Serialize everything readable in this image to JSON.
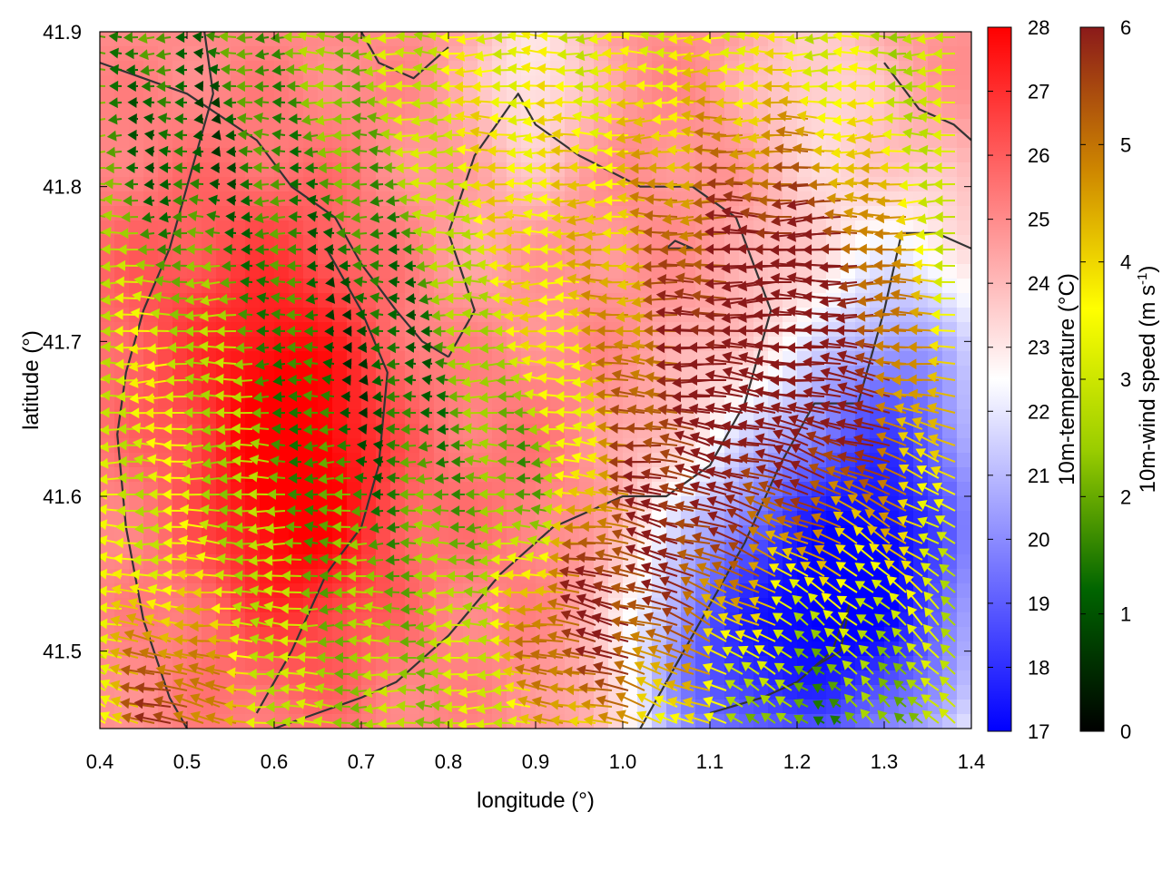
{
  "chart_data": {
    "type": "heatmap",
    "title": "",
    "xlabel": "longitude (°)",
    "ylabel": "latitude (°)",
    "xlim": [
      0.4,
      1.4
    ],
    "ylim": [
      41.45,
      41.9
    ],
    "xticks": [
      "0.4",
      "0.5",
      "0.6",
      "0.7",
      "0.8",
      "0.9",
      "1.0",
      "1.1",
      "1.2",
      "1.3",
      "1.4"
    ],
    "yticks": [
      "41.5",
      "41.6",
      "41.7",
      "41.8",
      "41.9"
    ],
    "grid": false,
    "temperature_colorbar": {
      "label": "10m-temperature (°C)",
      "range": [
        17,
        28
      ],
      "ticks": [
        "17",
        "18",
        "19",
        "20",
        "21",
        "22",
        "23",
        "24",
        "25",
        "26",
        "27",
        "28"
      ],
      "colors": [
        "#0000ff",
        "#ffffff",
        "#ff0000"
      ]
    },
    "windspeed_colorbar": {
      "label": "10m-wind speed (m s",
      "label_sup": "-1",
      "label_end": ")",
      "range": [
        0,
        6
      ],
      "ticks": [
        "0",
        "1",
        "2",
        "3",
        "4",
        "5",
        "6"
      ],
      "colors": [
        "#000000",
        "#006400",
        "#9acd00",
        "#ffff00",
        "#cd8500",
        "#8b1a1a"
      ]
    },
    "temperature_field": {
      "base": 25.0,
      "anomalies": [
        {
          "lon": 0.63,
          "lat": 41.6,
          "r": 0.08,
          "dT": 2.8
        },
        {
          "lon": 0.6,
          "lat": 41.7,
          "r": 0.08,
          "dT": 1.5
        },
        {
          "lon": 0.45,
          "lat": 41.72,
          "r": 0.07,
          "dT": 0.8
        },
        {
          "lon": 0.88,
          "lat": 41.62,
          "r": 0.07,
          "dT": 0.5
        },
        {
          "lon": 1.18,
          "lat": 41.52,
          "r": 0.1,
          "dT": -5.0
        },
        {
          "lon": 1.32,
          "lat": 41.55,
          "r": 0.1,
          "dT": -5.5
        },
        {
          "lon": 1.08,
          "lat": 41.48,
          "r": 0.07,
          "dT": -2.5
        },
        {
          "lon": 1.33,
          "lat": 41.7,
          "r": 0.08,
          "dT": -2.5
        },
        {
          "lon": 0.9,
          "lat": 41.88,
          "r": 0.05,
          "dT": -2.0
        },
        {
          "lon": 1.22,
          "lat": 41.87,
          "r": 0.06,
          "dT": -1.5
        },
        {
          "lon": 0.85,
          "lat": 41.77,
          "r": 0.07,
          "dT": -0.5
        }
      ]
    },
    "wind_field": {
      "speed_anomalies": [
        {
          "lon": 1.1,
          "lat": 41.57,
          "r": 0.1,
          "s": 5.8
        },
        {
          "lon": 1.24,
          "lat": 41.72,
          "r": 0.08,
          "s": 5.6
        },
        {
          "lon": 0.5,
          "lat": 41.46,
          "r": 0.06,
          "s": 5.5
        },
        {
          "lon": 0.95,
          "lat": 41.52,
          "r": 0.06,
          "s": 5.0
        },
        {
          "lon": 1.1,
          "lat": 41.78,
          "r": 0.1,
          "s": 4.3
        },
        {
          "lon": 1.3,
          "lat": 41.62,
          "r": 0.08,
          "s": 4.0
        },
        {
          "lon": 0.47,
          "lat": 41.7,
          "r": 0.07,
          "s": 3.8
        },
        {
          "lon": 0.85,
          "lat": 41.82,
          "r": 0.08,
          "s": 3.8
        },
        {
          "lon": 0.92,
          "lat": 41.7,
          "r": 0.06,
          "s": 3.2
        }
      ],
      "calm_zones": [
        {
          "lon": 0.72,
          "lat": 41.7,
          "r": 0.09
        },
        {
          "lon": 0.92,
          "lat": 41.6,
          "r": 0.05
        },
        {
          "lon": 0.5,
          "lat": 41.82,
          "r": 0.08
        },
        {
          "lon": 1.2,
          "lat": 41.47,
          "r": 0.08
        }
      ]
    },
    "contours": [
      [
        [
          0.4,
          41.88
        ],
        [
          0.5,
          41.86
        ],
        [
          0.58,
          41.83
        ],
        [
          0.62,
          41.8
        ],
        [
          0.67,
          41.78
        ],
        [
          0.7,
          41.75
        ],
        [
          0.74,
          41.72
        ],
        [
          0.77,
          41.7
        ],
        [
          0.8,
          41.69
        ]
      ],
      [
        [
          0.8,
          41.69
        ],
        [
          0.83,
          41.72
        ],
        [
          0.8,
          41.77
        ],
        [
          0.83,
          41.82
        ],
        [
          0.88,
          41.86
        ],
        [
          0.9,
          41.84
        ],
        [
          0.95,
          41.82
        ],
        [
          1.02,
          41.8
        ],
        [
          1.08,
          41.8
        ],
        [
          1.13,
          41.78
        ],
        [
          1.17,
          41.72
        ],
        [
          1.14,
          41.66
        ],
        [
          1.1,
          41.62
        ],
        [
          1.05,
          41.6
        ],
        [
          1.0,
          41.6
        ],
        [
          0.92,
          41.58
        ],
        [
          0.86,
          41.55
        ],
        [
          0.8,
          41.51
        ],
        [
          0.74,
          41.48
        ],
        [
          0.7,
          41.47
        ],
        [
          0.65,
          41.46
        ],
        [
          0.6,
          41.45
        ]
      ],
      [
        [
          0.52,
          41.9
        ],
        [
          0.53,
          41.86
        ],
        [
          0.5,
          41.8
        ],
        [
          0.48,
          41.76
        ],
        [
          0.45,
          41.72
        ],
        [
          0.43,
          41.68
        ],
        [
          0.42,
          41.64
        ],
        [
          0.43,
          41.58
        ],
        [
          0.45,
          41.52
        ],
        [
          0.48,
          41.47
        ],
        [
          0.5,
          41.45
        ]
      ],
      [
        [
          0.7,
          41.9
        ],
        [
          0.72,
          41.88
        ],
        [
          0.76,
          41.87
        ],
        [
          0.8,
          41.89
        ]
      ],
      [
        [
          0.66,
          41.76
        ],
        [
          0.7,
          41.72
        ],
        [
          0.73,
          41.68
        ],
        [
          0.72,
          41.62
        ],
        [
          0.7,
          41.58
        ],
        [
          0.66,
          41.55
        ],
        [
          0.62,
          41.5
        ],
        [
          0.58,
          41.46
        ]
      ],
      [
        [
          1.02,
          41.45
        ],
        [
          1.06,
          41.49
        ],
        [
          1.09,
          41.52
        ],
        [
          1.14,
          41.57
        ],
        [
          1.18,
          41.62
        ],
        [
          1.22,
          41.66
        ],
        [
          1.27,
          41.66
        ],
        [
          1.3,
          41.72
        ],
        [
          1.32,
          41.77
        ],
        [
          1.36,
          41.77
        ],
        [
          1.4,
          41.76
        ]
      ],
      [
        [
          1.1,
          41.46
        ],
        [
          1.16,
          41.47
        ],
        [
          1.2,
          41.48
        ],
        [
          1.24,
          41.5
        ],
        [
          1.26,
          41.53
        ],
        [
          1.25,
          41.5
        ],
        [
          1.22,
          41.49
        ]
      ],
      [
        [
          1.05,
          41.76
        ],
        [
          1.08,
          41.76
        ],
        [
          1.06,
          41.765
        ],
        [
          1.05,
          41.76
        ]
      ],
      [
        [
          1.3,
          41.88
        ],
        [
          1.34,
          41.85
        ],
        [
          1.38,
          41.84
        ],
        [
          1.4,
          41.83
        ]
      ]
    ]
  }
}
